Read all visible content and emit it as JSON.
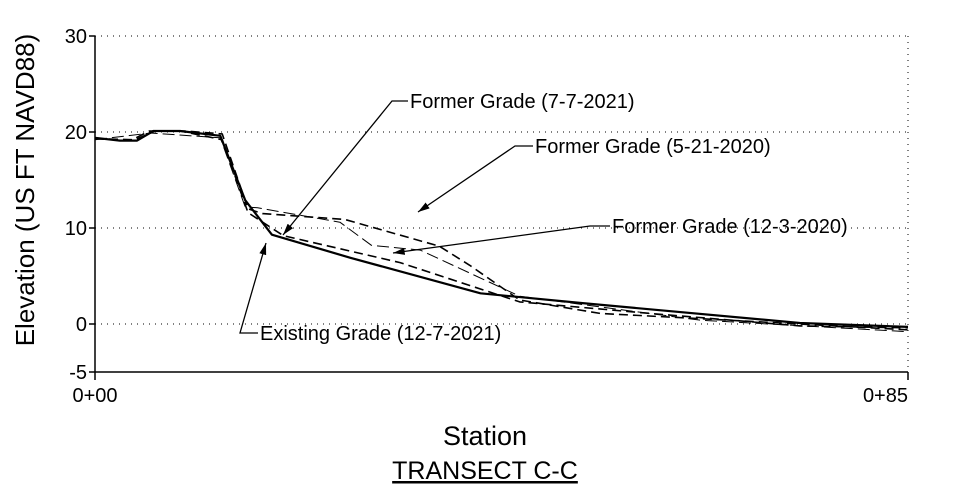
{
  "chart_data": {
    "type": "line",
    "title": "TRANSECT C-C",
    "xlabel": "Station",
    "ylabel": "Elevation (US FT NAVD88)",
    "xlim": [
      0,
      85
    ],
    "xticks": [
      {
        "value": 0,
        "label": "0+00"
      },
      {
        "value": 85,
        "label": "0+85"
      }
    ],
    "ylim": [
      -5,
      30
    ],
    "yticks": [
      -5,
      0,
      10,
      20,
      30
    ],
    "grid": true,
    "series": [
      {
        "name": "Existing Grade (12-7-2021)",
        "color": "#000000",
        "dash": "solid",
        "x": [
          0,
          2.6,
          4.4,
          6.1,
          8.9,
          13.1,
          15.7,
          18.5,
          26.7,
          40.3,
          50.7,
          73.7,
          85
        ],
        "values": [
          19.4,
          19.1,
          19.1,
          20.1,
          20.1,
          19.6,
          12.9,
          9.3,
          6.9,
          3.2,
          2.2,
          0.1,
          -0.3
        ]
      },
      {
        "name": "Former Grade (7-7-2021)",
        "color": "#000000",
        "dash": "dashed",
        "x": [
          0,
          4.2,
          6.3,
          8.9,
          13.3,
          16,
          19.7,
          31.9,
          44.4,
          58,
          73.7,
          85
        ],
        "values": [
          19.3,
          19.2,
          20.1,
          20.1,
          19.2,
          11.6,
          9.2,
          6.4,
          2.3,
          1.1,
          -0.2,
          -0.4
        ]
      },
      {
        "name": "Former Grade (5-21-2020)",
        "color": "#000000",
        "dash": "dashed",
        "x": [
          0,
          3.7,
          5.7,
          9.4,
          13.3,
          16,
          17.5,
          26.1,
          36,
          39.2,
          44.4,
          52.8,
          73.7,
          85
        ],
        "values": [
          19.3,
          19.1,
          20.1,
          20.1,
          19.8,
          12,
          11.5,
          10.9,
          8.1,
          6.1,
          2.5,
          1.1,
          0,
          -0.6
        ]
      },
      {
        "name": "Former Grade (12-3-2020)",
        "color": "#000000",
        "dash": "thin",
        "x": [
          0,
          5.8,
          13.1,
          15.7,
          17,
          25.6,
          28.9,
          34,
          44.4,
          63.3,
          85
        ],
        "values": [
          19.2,
          19.9,
          19.4,
          12.2,
          12.1,
          10.6,
          8.2,
          7.7,
          2.9,
          0.4,
          -0.8
        ]
      }
    ]
  }
}
